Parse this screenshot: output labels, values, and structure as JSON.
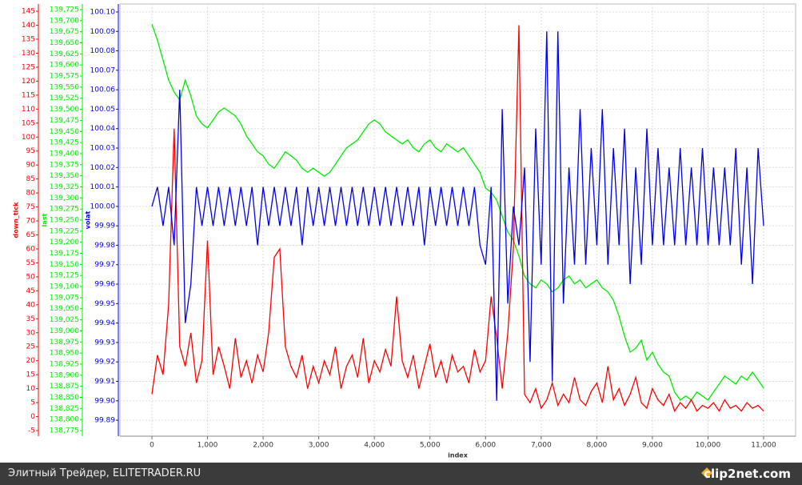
{
  "chart_data": {
    "type": "line",
    "xlabel": "index",
    "ylabel": "down_tick",
    "y2label": "last",
    "y3label": "volat",
    "grid": true,
    "xlim": [
      -575,
      11575
    ],
    "xticks": [
      0,
      {
        "value": 1000,
        "label": "1,000"
      },
      {
        "value": 2000,
        "label": "2,000"
      },
      {
        "value": 3000,
        "label": "3,000"
      },
      {
        "value": 4000,
        "label": "4,000"
      },
      {
        "value": 5000,
        "label": "5,000"
      },
      {
        "value": 6000,
        "label": "6,000"
      },
      {
        "value": 7000,
        "label": "7,000"
      },
      {
        "value": 8000,
        "label": "8,000"
      },
      {
        "value": 9000,
        "label": "9,000"
      },
      {
        "value": 10000,
        "label": "10,000"
      },
      {
        "value": 11000,
        "label": "11,000"
      }
    ],
    "ylim": [
      -7,
      147.6
    ],
    "yticks": [
      -5,
      0,
      5,
      10,
      15,
      20,
      25,
      30,
      35,
      40,
      45,
      50,
      55,
      60,
      65,
      70,
      75,
      80,
      85,
      90,
      95,
      100,
      105,
      110,
      115,
      120,
      125,
      130,
      135,
      140,
      145
    ],
    "y2lim": [
      138762.4,
      139737.6
    ],
    "y2ticks": [
      {
        "value": 138775,
        "label": "138,775"
      },
      {
        "value": 138800,
        "label": "138,800"
      },
      {
        "value": 138825,
        "label": "138,825"
      },
      {
        "value": 138850,
        "label": "138,850"
      },
      {
        "value": 138875,
        "label": "138,875"
      },
      {
        "value": 138900,
        "label": "138,900"
      },
      {
        "value": 138925,
        "label": "138,925"
      },
      {
        "value": 138950,
        "label": "138,950"
      },
      {
        "value": 138975,
        "label": "138,975"
      },
      {
        "value": 139000,
        "label": "139,000"
      },
      {
        "value": 139025,
        "label": "139,025"
      },
      {
        "value": 139050,
        "label": "139,050"
      },
      {
        "value": 139075,
        "label": "139,075"
      },
      {
        "value": 139100,
        "label": "139,100"
      },
      {
        "value": 139125,
        "label": "139,125"
      },
      {
        "value": 139150,
        "label": "139,150"
      },
      {
        "value": 139175,
        "label": "139,175"
      },
      {
        "value": 139200,
        "label": "139,200"
      },
      {
        "value": 139225,
        "label": "139,225"
      },
      {
        "value": 139250,
        "label": "139,250"
      },
      {
        "value": 139275,
        "label": "139,275"
      },
      {
        "value": 139300,
        "label": "139,300"
      },
      {
        "value": 139325,
        "label": "139,325"
      },
      {
        "value": 139350,
        "label": "139,350"
      },
      {
        "value": 139375,
        "label": "139,375"
      },
      {
        "value": 139400,
        "label": "139,400"
      },
      {
        "value": 139425,
        "label": "139,425"
      },
      {
        "value": 139450,
        "label": "139,450"
      },
      {
        "value": 139475,
        "label": "139,475"
      },
      {
        "value": 139500,
        "label": "139,500"
      },
      {
        "value": 139525,
        "label": "139,525"
      },
      {
        "value": 139550,
        "label": "139,550"
      },
      {
        "value": 139575,
        "label": "139,575"
      },
      {
        "value": 139600,
        "label": "139,600"
      },
      {
        "value": 139625,
        "label": "139,625"
      },
      {
        "value": 139650,
        "label": "139,650"
      },
      {
        "value": 139675,
        "label": "139,675"
      },
      {
        "value": 139700,
        "label": "139,700"
      },
      {
        "value": 139725,
        "label": "139,725"
      }
    ],
    "y3lim": [
      99.8818,
      100.1041
    ],
    "y3ticks": [
      99.89,
      {
        "value": 99.9,
        "label": "99.90"
      },
      99.91,
      99.92,
      99.93,
      99.94,
      99.95,
      99.96,
      99.97,
      99.98,
      99.99,
      {
        "value": 100,
        "label": "100.00"
      },
      100.01,
      100.02,
      100.03,
      100.04,
      100.05,
      100.06,
      100.07,
      100.08,
      100.09,
      {
        "value": 100.1,
        "label": "100.10"
      }
    ],
    "x": [
      0,
      100,
      200,
      300,
      400,
      500,
      600,
      700,
      800,
      900,
      1000,
      1100,
      1200,
      1300,
      1400,
      1500,
      1600,
      1700,
      1800,
      1900,
      2000,
      2100,
      2200,
      2300,
      2400,
      2500,
      2600,
      2700,
      2800,
      2900,
      3000,
      3100,
      3200,
      3300,
      3400,
      3500,
      3600,
      3700,
      3800,
      3900,
      4000,
      4100,
      4200,
      4300,
      4400,
      4500,
      4600,
      4700,
      4800,
      4900,
      5000,
      5100,
      5200,
      5300,
      5400,
      5500,
      5600,
      5700,
      5800,
      5900,
      6000,
      6100,
      6200,
      6300,
      6400,
      6500,
      6600,
      6700,
      6800,
      6900,
      7000,
      7100,
      7200,
      7300,
      7400,
      7500,
      7600,
      7700,
      7800,
      7900,
      8000,
      8100,
      8200,
      8300,
      8400,
      8500,
      8600,
      8700,
      8800,
      8900,
      9000,
      9100,
      9200,
      9300,
      9400,
      9500,
      9600,
      9700,
      9800,
      9900,
      10000,
      10100,
      10200,
      10300,
      10400,
      10500,
      10600,
      10700,
      10800,
      10900,
      11000
    ],
    "series": [
      {
        "axis": "y2",
        "color": "#00ee00",
        "values": [
          139692,
          139656,
          139611,
          139566,
          139539,
          139521,
          139566,
          139530,
          139485,
          139467,
          139458,
          139476,
          139494,
          139503,
          139494,
          139485,
          139467,
          139440,
          139422,
          139404,
          139395,
          139376,
          139367,
          139385,
          139404,
          139395,
          139385,
          139367,
          139358,
          139367,
          139358,
          139349,
          139358,
          139376,
          139395,
          139413,
          139422,
          139431,
          139449,
          139467,
          139476,
          139467,
          139449,
          139440,
          139431,
          139422,
          139431,
          139413,
          139404,
          139422,
          139431,
          139413,
          139404,
          139422,
          139413,
          139404,
          139413,
          139395,
          139376,
          139358,
          139322,
          139313,
          139295,
          139259,
          139223,
          139205,
          139169,
          139124,
          139106,
          139097,
          139115,
          139106,
          139088,
          139097,
          139115,
          139124,
          139106,
          139115,
          139097,
          139106,
          139115,
          139097,
          139088,
          139069,
          139033,
          138988,
          138952,
          138961,
          138979,
          138934,
          138952,
          138925,
          138907,
          138898,
          138862,
          138844,
          138853,
          138844,
          138862,
          138853,
          138844,
          138862,
          138880,
          138898,
          138889,
          138880,
          138898,
          138889,
          138907,
          138889,
          138871
        ]
      },
      {
        "axis": "y",
        "color": "#ff0000",
        "values": [
          8,
          22,
          15,
          40,
          103,
          25,
          18,
          30,
          12,
          20,
          63,
          15,
          25,
          18,
          10,
          28,
          14,
          20,
          12,
          22,
          16,
          30,
          57,
          60,
          25,
          18,
          14,
          22,
          10,
          18,
          12,
          20,
          15,
          25,
          10,
          18,
          22,
          14,
          28,
          12,
          20,
          16,
          24,
          18,
          43,
          20,
          14,
          22,
          10,
          18,
          26,
          14,
          20,
          12,
          22,
          16,
          18,
          12,
          24,
          16,
          20,
          43,
          28,
          10,
          30,
          60,
          140,
          8,
          5,
          10,
          3,
          6,
          12,
          4,
          8,
          5,
          14,
          6,
          4,
          9,
          12,
          5,
          18,
          6,
          10,
          4,
          8,
          14,
          5,
          3,
          10,
          6,
          4,
          8,
          2,
          5,
          3,
          6,
          2,
          4,
          3,
          5,
          2,
          6,
          3,
          4,
          2,
          5,
          3,
          4,
          2
        ]
      },
      {
        "axis": "y3",
        "color": "#0000ee",
        "values": [
          100.0,
          100.01,
          99.99,
          100.01,
          99.98,
          100.06,
          99.94,
          99.96,
          100.01,
          99.99,
          100.01,
          99.99,
          100.01,
          99.99,
          100.01,
          99.99,
          100.01,
          99.99,
          100.01,
          99.98,
          100.01,
          99.99,
          100.01,
          99.99,
          100.01,
          99.99,
          100.01,
          99.98,
          100.01,
          99.99,
          100.01,
          99.99,
          100.01,
          99.99,
          100.01,
          99.99,
          100.01,
          99.99,
          100.01,
          99.99,
          100.01,
          99.99,
          100.01,
          99.99,
          100.01,
          99.99,
          100.01,
          99.99,
          100.01,
          99.98,
          100.01,
          99.99,
          100.01,
          99.99,
          100.01,
          99.99,
          100.01,
          99.99,
          100.01,
          99.98,
          99.97,
          100.01,
          99.9,
          100.05,
          99.95,
          100.0,
          99.98,
          100.02,
          99.92,
          100.04,
          99.97,
          100.09,
          99.91,
          100.09,
          99.95,
          100.02,
          99.97,
          100.05,
          99.97,
          100.03,
          99.98,
          100.05,
          99.97,
          100.03,
          99.98,
          100.04,
          99.96,
          100.02,
          99.97,
          100.04,
          99.98,
          100.03,
          99.98,
          100.02,
          99.98,
          100.03,
          99.98,
          100.02,
          99.98,
          100.03,
          99.98,
          100.02,
          99.98,
          100.02,
          99.98,
          100.03,
          99.97,
          100.02,
          99.96,
          100.03,
          99.99
        ]
      }
    ]
  },
  "footer": {
    "caption": "Элитный Трейдер, ELITETRADER.RU",
    "brand": "clip2net.com"
  }
}
